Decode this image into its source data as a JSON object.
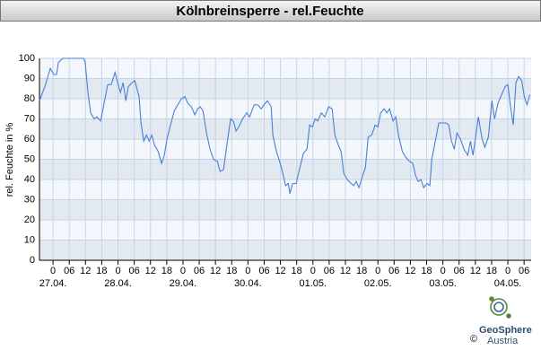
{
  "chart_data": {
    "type": "line",
    "title": "Kölnbreinsperre - rel.Feuchte",
    "y_label": "rel. Feuchte in %",
    "color": "#4a7fd8",
    "grid": true,
    "xlim": [
      -5,
      176.6
    ],
    "ylim": [
      0,
      100
    ],
    "yticks": [
      0,
      10,
      20,
      30,
      40,
      50,
      60,
      70,
      80,
      90,
      100
    ],
    "xticks": [
      0,
      {
        "value": 6,
        "label": "06"
      },
      12,
      18,
      {
        "value": 24,
        "label": "0"
      },
      {
        "value": 30,
        "label": "06"
      },
      {
        "value": 36,
        "label": "12"
      },
      {
        "value": 42,
        "label": "18"
      },
      {
        "value": 48,
        "label": "0"
      },
      {
        "value": 54,
        "label": "06"
      },
      {
        "value": 60,
        "label": "12"
      },
      {
        "value": 66,
        "label": "18"
      },
      {
        "value": 72,
        "label": "0"
      },
      {
        "value": 78,
        "label": "06"
      },
      {
        "value": 84,
        "label": "12"
      },
      {
        "value": 90,
        "label": "18"
      },
      {
        "value": 96,
        "label": "0"
      },
      {
        "value": 102,
        "label": "06"
      },
      {
        "value": 108,
        "label": "12"
      },
      {
        "value": 114,
        "label": "18"
      },
      {
        "value": 120,
        "label": "0"
      },
      {
        "value": 126,
        "label": "06"
      },
      {
        "value": 132,
        "label": "12"
      },
      {
        "value": 138,
        "label": "18"
      },
      {
        "value": 144,
        "label": "0"
      },
      {
        "value": 150,
        "label": "06"
      },
      {
        "value": 156,
        "label": "12"
      },
      {
        "value": 162,
        "label": "18"
      },
      {
        "value": 168,
        "label": "0"
      },
      {
        "value": 174,
        "label": "06"
      }
    ],
    "date_labels": [
      {
        "value": 0,
        "label": "27.04."
      },
      {
        "value": 24,
        "label": "28.04."
      },
      {
        "value": 48,
        "label": "29.04."
      },
      {
        "value": 72,
        "label": "30.04."
      },
      {
        "value": 96,
        "label": "01.05."
      },
      {
        "value": 120,
        "label": "02.05."
      },
      {
        "value": 144,
        "label": "03.05."
      },
      {
        "value": 168,
        "label": "04.05."
      }
    ],
    "x": [
      -5.0,
      -3.0,
      -1.0,
      0.3,
      1.3,
      2.0,
      3.6,
      5.3,
      11.3,
      11.9,
      12.9,
      13.9,
      15.2,
      16.2,
      17.6,
      18.9,
      20.2,
      21.5,
      22.9,
      23.9,
      24.9,
      25.9,
      26.9,
      27.8,
      29.2,
      30.2,
      31.8,
      32.5,
      33.5,
      34.5,
      35.5,
      36.5,
      37.5,
      38.8,
      40.1,
      41.1,
      42.1,
      43.4,
      44.8,
      46.1,
      47.4,
      48.7,
      49.7,
      51.1,
      52.4,
      53.4,
      54.4,
      55.4,
      56.7,
      58.0,
      59.3,
      60.7,
      61.7,
      63.0,
      64.3,
      65.6,
      66.6,
      67.6,
      68.6,
      70.0,
      71.6,
      72.6,
      74.3,
      75.6,
      76.9,
      77.9,
      79.2,
      80.6,
      81.2,
      82.5,
      83.9,
      84.9,
      85.9,
      86.9,
      87.5,
      88.5,
      89.8,
      91.2,
      92.5,
      93.8,
      94.8,
      95.8,
      96.8,
      97.8,
      99.1,
      100.4,
      101.8,
      103.1,
      104.1,
      105.4,
      106.4,
      107.4,
      108.7,
      110.1,
      111.1,
      112.0,
      113.0,
      114.4,
      115.4,
      116.4,
      117.7,
      119.0,
      120.0,
      121.0,
      122.3,
      123.3,
      124.3,
      125.6,
      126.6,
      127.6,
      129.0,
      130.3,
      131.6,
      132.9,
      133.9,
      134.9,
      135.9,
      136.9,
      138.2,
      139.2,
      139.9,
      141.2,
      142.5,
      144.2,
      145.2,
      146.2,
      147.2,
      148.2,
      149.2,
      150.5,
      151.8,
      153.2,
      154.2,
      155.1,
      156.1,
      157.1,
      158.5,
      159.5,
      160.8,
      162.1,
      163.1,
      164.4,
      165.7,
      167.0,
      168.0,
      169.0,
      170.0,
      171.0,
      172.0,
      173.1,
      174.1,
      175.1,
      176.1
    ],
    "values": [
      79,
      86,
      95,
      92,
      92,
      98,
      100,
      100,
      100,
      98,
      83,
      73,
      70,
      71,
      69,
      78,
      87,
      87,
      93,
      88,
      83,
      88,
      79,
      86,
      88,
      89,
      81,
      68,
      59,
      62,
      59,
      62,
      57,
      54,
      48,
      52,
      60,
      67,
      74,
      77,
      80,
      81,
      78,
      76,
      72,
      75,
      76,
      74,
      63,
      55,
      50,
      49,
      44,
      45,
      58,
      70,
      69,
      64,
      66,
      70,
      73,
      71,
      77,
      77,
      75,
      77,
      79,
      76,
      62,
      54,
      48,
      43,
      37,
      38,
      33,
      38,
      38,
      46,
      53,
      55,
      67,
      66,
      70,
      69,
      73,
      71,
      76,
      75,
      62,
      57,
      54,
      43,
      40,
      38,
      37,
      39,
      36,
      42,
      46,
      61,
      62,
      67,
      66,
      73,
      75,
      73,
      75,
      69,
      71,
      62,
      54,
      51,
      49,
      48,
      42,
      39,
      40,
      36,
      38,
      37,
      50,
      59,
      68,
      68,
      68,
      67,
      59,
      55,
      63,
      60,
      55,
      52,
      59,
      52,
      61,
      71,
      60,
      56,
      61,
      79,
      70,
      78,
      82,
      86,
      87,
      76,
      67,
      88,
      91,
      89,
      81,
      77,
      82
    ]
  },
  "logo": {
    "copyright": "©",
    "name": "GeoSphere",
    "country": "Austria"
  }
}
